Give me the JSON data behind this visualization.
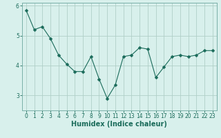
{
  "x": [
    0,
    1,
    2,
    3,
    4,
    5,
    6,
    7,
    8,
    9,
    10,
    11,
    12,
    13,
    14,
    15,
    16,
    17,
    18,
    19,
    20,
    21,
    22,
    23
  ],
  "y": [
    5.85,
    5.2,
    5.3,
    4.9,
    4.35,
    4.05,
    3.8,
    3.8,
    4.3,
    3.55,
    2.9,
    3.35,
    4.3,
    4.35,
    4.6,
    4.55,
    3.6,
    3.95,
    4.3,
    4.35,
    4.3,
    4.35,
    4.5,
    4.5
  ],
  "line_color": "#1a6b5a",
  "marker": "D",
  "marker_size": 2.5,
  "bg_color": "#d8f0ec",
  "grid_color": "#b0cfc8",
  "xlabel": "Humidex (Indice chaleur)",
  "ylim": [
    2.5,
    6.1
  ],
  "xlim": [
    -0.5,
    23.5
  ],
  "yticks": [
    3,
    4,
    5,
    6
  ],
  "xticks": [
    0,
    1,
    2,
    3,
    4,
    5,
    6,
    7,
    8,
    9,
    10,
    11,
    12,
    13,
    14,
    15,
    16,
    17,
    18,
    19,
    20,
    21,
    22,
    23
  ],
  "xtick_labels": [
    "0",
    "1",
    "2",
    "3",
    "4",
    "5",
    "6",
    "7",
    "8",
    "9",
    "10",
    "11",
    "12",
    "13",
    "14",
    "15",
    "16",
    "17",
    "18",
    "19",
    "20",
    "21",
    "22",
    "23"
  ],
  "tick_color": "#1a6b5a",
  "label_fontsize": 7,
  "tick_fontsize": 5.5,
  "spine_color": "#7ab0a8"
}
